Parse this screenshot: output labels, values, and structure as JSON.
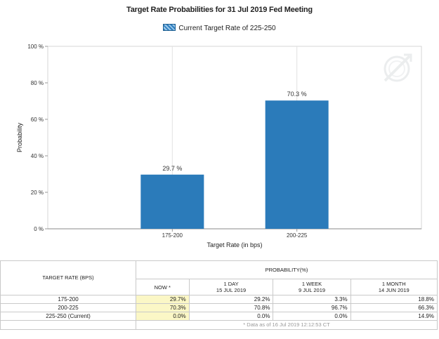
{
  "chart_data": {
    "type": "bar",
    "title": "Target Rate Probabilities for 31 Jul 2019 Fed Meeting",
    "legend": {
      "label": "Current Target Rate of 225-250",
      "position": "top-center"
    },
    "categories": [
      "175-200",
      "200-225"
    ],
    "values": [
      29.7,
      70.3
    ],
    "data_labels": [
      "29.7 %",
      "70.3 %"
    ],
    "xlabel": "Target Rate (in bps)",
    "ylabel": "Probability",
    "ylim": [
      0,
      100
    ],
    "yticks": [
      0,
      20,
      40,
      60,
      80,
      100
    ],
    "ytick_labels": [
      "0 %",
      "20 %",
      "40 %",
      "60 %",
      "80 %",
      "100 %"
    ],
    "grid": "vertical",
    "bar_color": "#2b7bba"
  },
  "table": {
    "rate_header": "TARGET RATE (BPS)",
    "prob_header": "PROBABILITY(%)",
    "columns": [
      {
        "line1": "NOW *",
        "line2": ""
      },
      {
        "line1": "1 DAY",
        "line2": "15 JUL 2019"
      },
      {
        "line1": "1 WEEK",
        "line2": "9 JUL 2019"
      },
      {
        "line1": "1 MONTH",
        "line2": "14 JUN 2019"
      }
    ],
    "rows": [
      {
        "rate": "175-200",
        "values": [
          "29.7%",
          "29.2%",
          "3.3%",
          "18.8%"
        ]
      },
      {
        "rate": "200-225",
        "values": [
          "70.3%",
          "70.8%",
          "96.7%",
          "66.3%"
        ]
      },
      {
        "rate": "225-250 (Current)",
        "values": [
          "0.0%",
          "0.0%",
          "0.0%",
          "14.9%"
        ]
      }
    ],
    "footnote": "* Data as of 16 Jul 2019 12:12:53 CT"
  }
}
